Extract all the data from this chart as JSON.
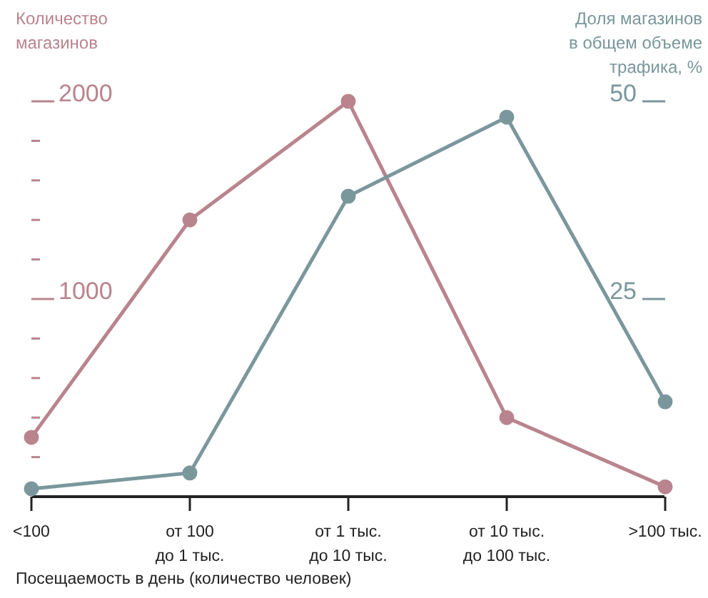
{
  "chart_data": {
    "type": "line",
    "ylabel": "Количество\nмагазинов",
    "y2label": "Доля магазинов\nв общем объеме\nтрафика, %",
    "xlabel": "Посещаемость в день (количество человек)",
    "categories": [
      "<100",
      "от 100\nдо 1 тыс.",
      "от 1 тыс.\nдо 10 тыс.",
      "от 10 тыс.\nдо 100 тыс.",
      ">100 тыс."
    ],
    "series": [
      {
        "color": "#b9848e",
        "values": [
          300,
          1400,
          2000,
          400,
          50
        ]
      },
      {
        "color": "#7a979c",
        "axis": "y2",
        "values": [
          1,
          3,
          38,
          48,
          12
        ]
      }
    ],
    "ylim": [
      0,
      2000
    ],
    "yticks": [
      {
        "value": 200,
        "label": null
      },
      {
        "value": 400,
        "label": null
      },
      {
        "value": 600,
        "label": null
      },
      {
        "value": 800,
        "label": null
      },
      1000,
      {
        "value": 1200,
        "label": null
      },
      {
        "value": 1400,
        "label": null
      },
      {
        "value": 1600,
        "label": null
      },
      {
        "value": 1800,
        "label": null
      },
      2000
    ],
    "y2lim": [
      0,
      50
    ],
    "y2ticks": [
      25,
      50
    ],
    "marker": "circle",
    "line_style": "solid",
    "grid": false,
    "legend": false
  }
}
